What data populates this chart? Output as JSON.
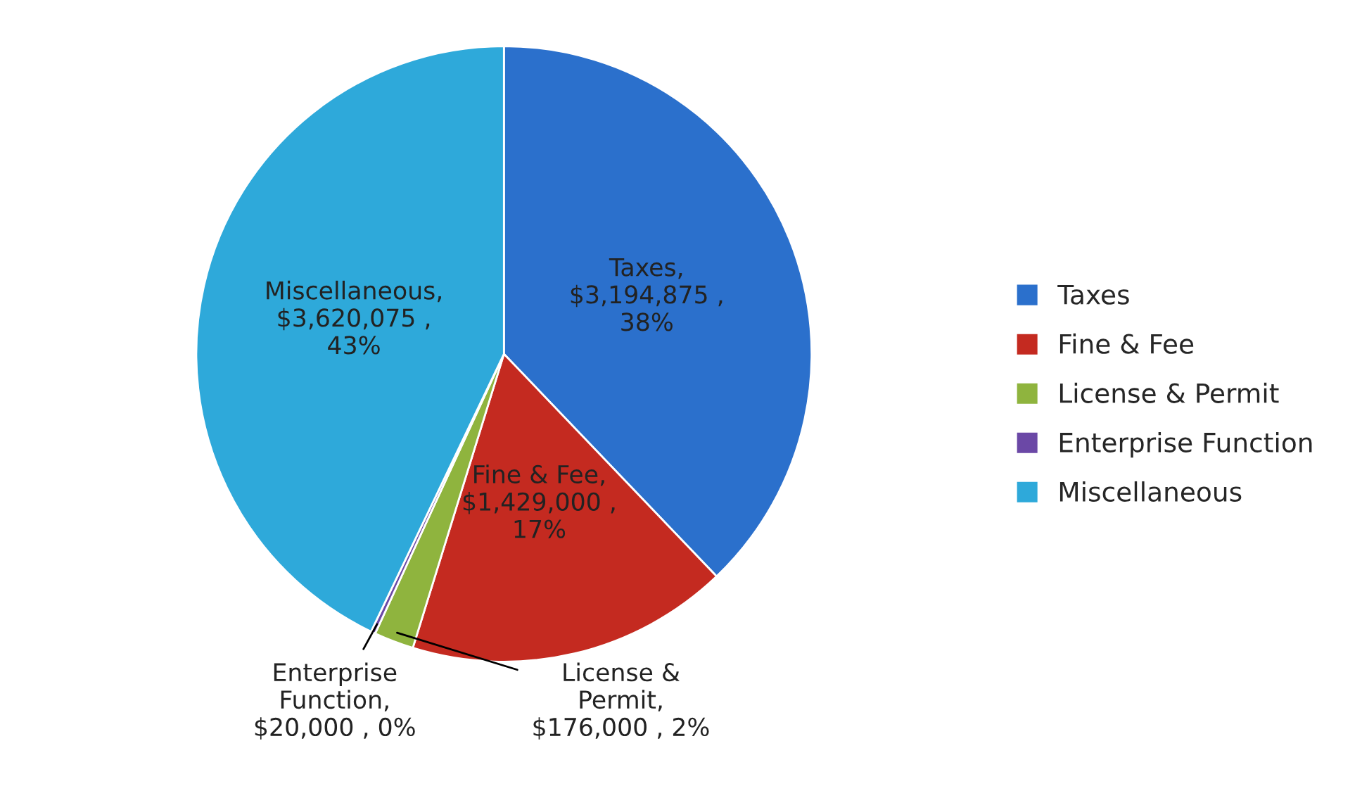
{
  "chart_data": {
    "type": "pie",
    "categories": [
      "Taxes",
      "Fine & Fee",
      "License & Permit",
      "Enterprise Function",
      "Miscellaneous"
    ],
    "values": [
      3194875,
      1429000,
      176000,
      20000,
      3620075
    ],
    "colors": [
      "#2b70cc",
      "#c42a20",
      "#8fb43e",
      "#6b48a6",
      "#2ea9da"
    ],
    "value_labels": [
      "Taxes,\n$3,194,875 ,\n38%",
      "Fine & Fee,\n$1,429,000 ,\n17%",
      "License &\nPermit,\n$176,000 , 2%",
      "Enterprise\nFunction,\n$20,000 , 0%",
      "Miscellaneous,\n$3,620,075 ,\n43%"
    ],
    "legend": "right"
  }
}
